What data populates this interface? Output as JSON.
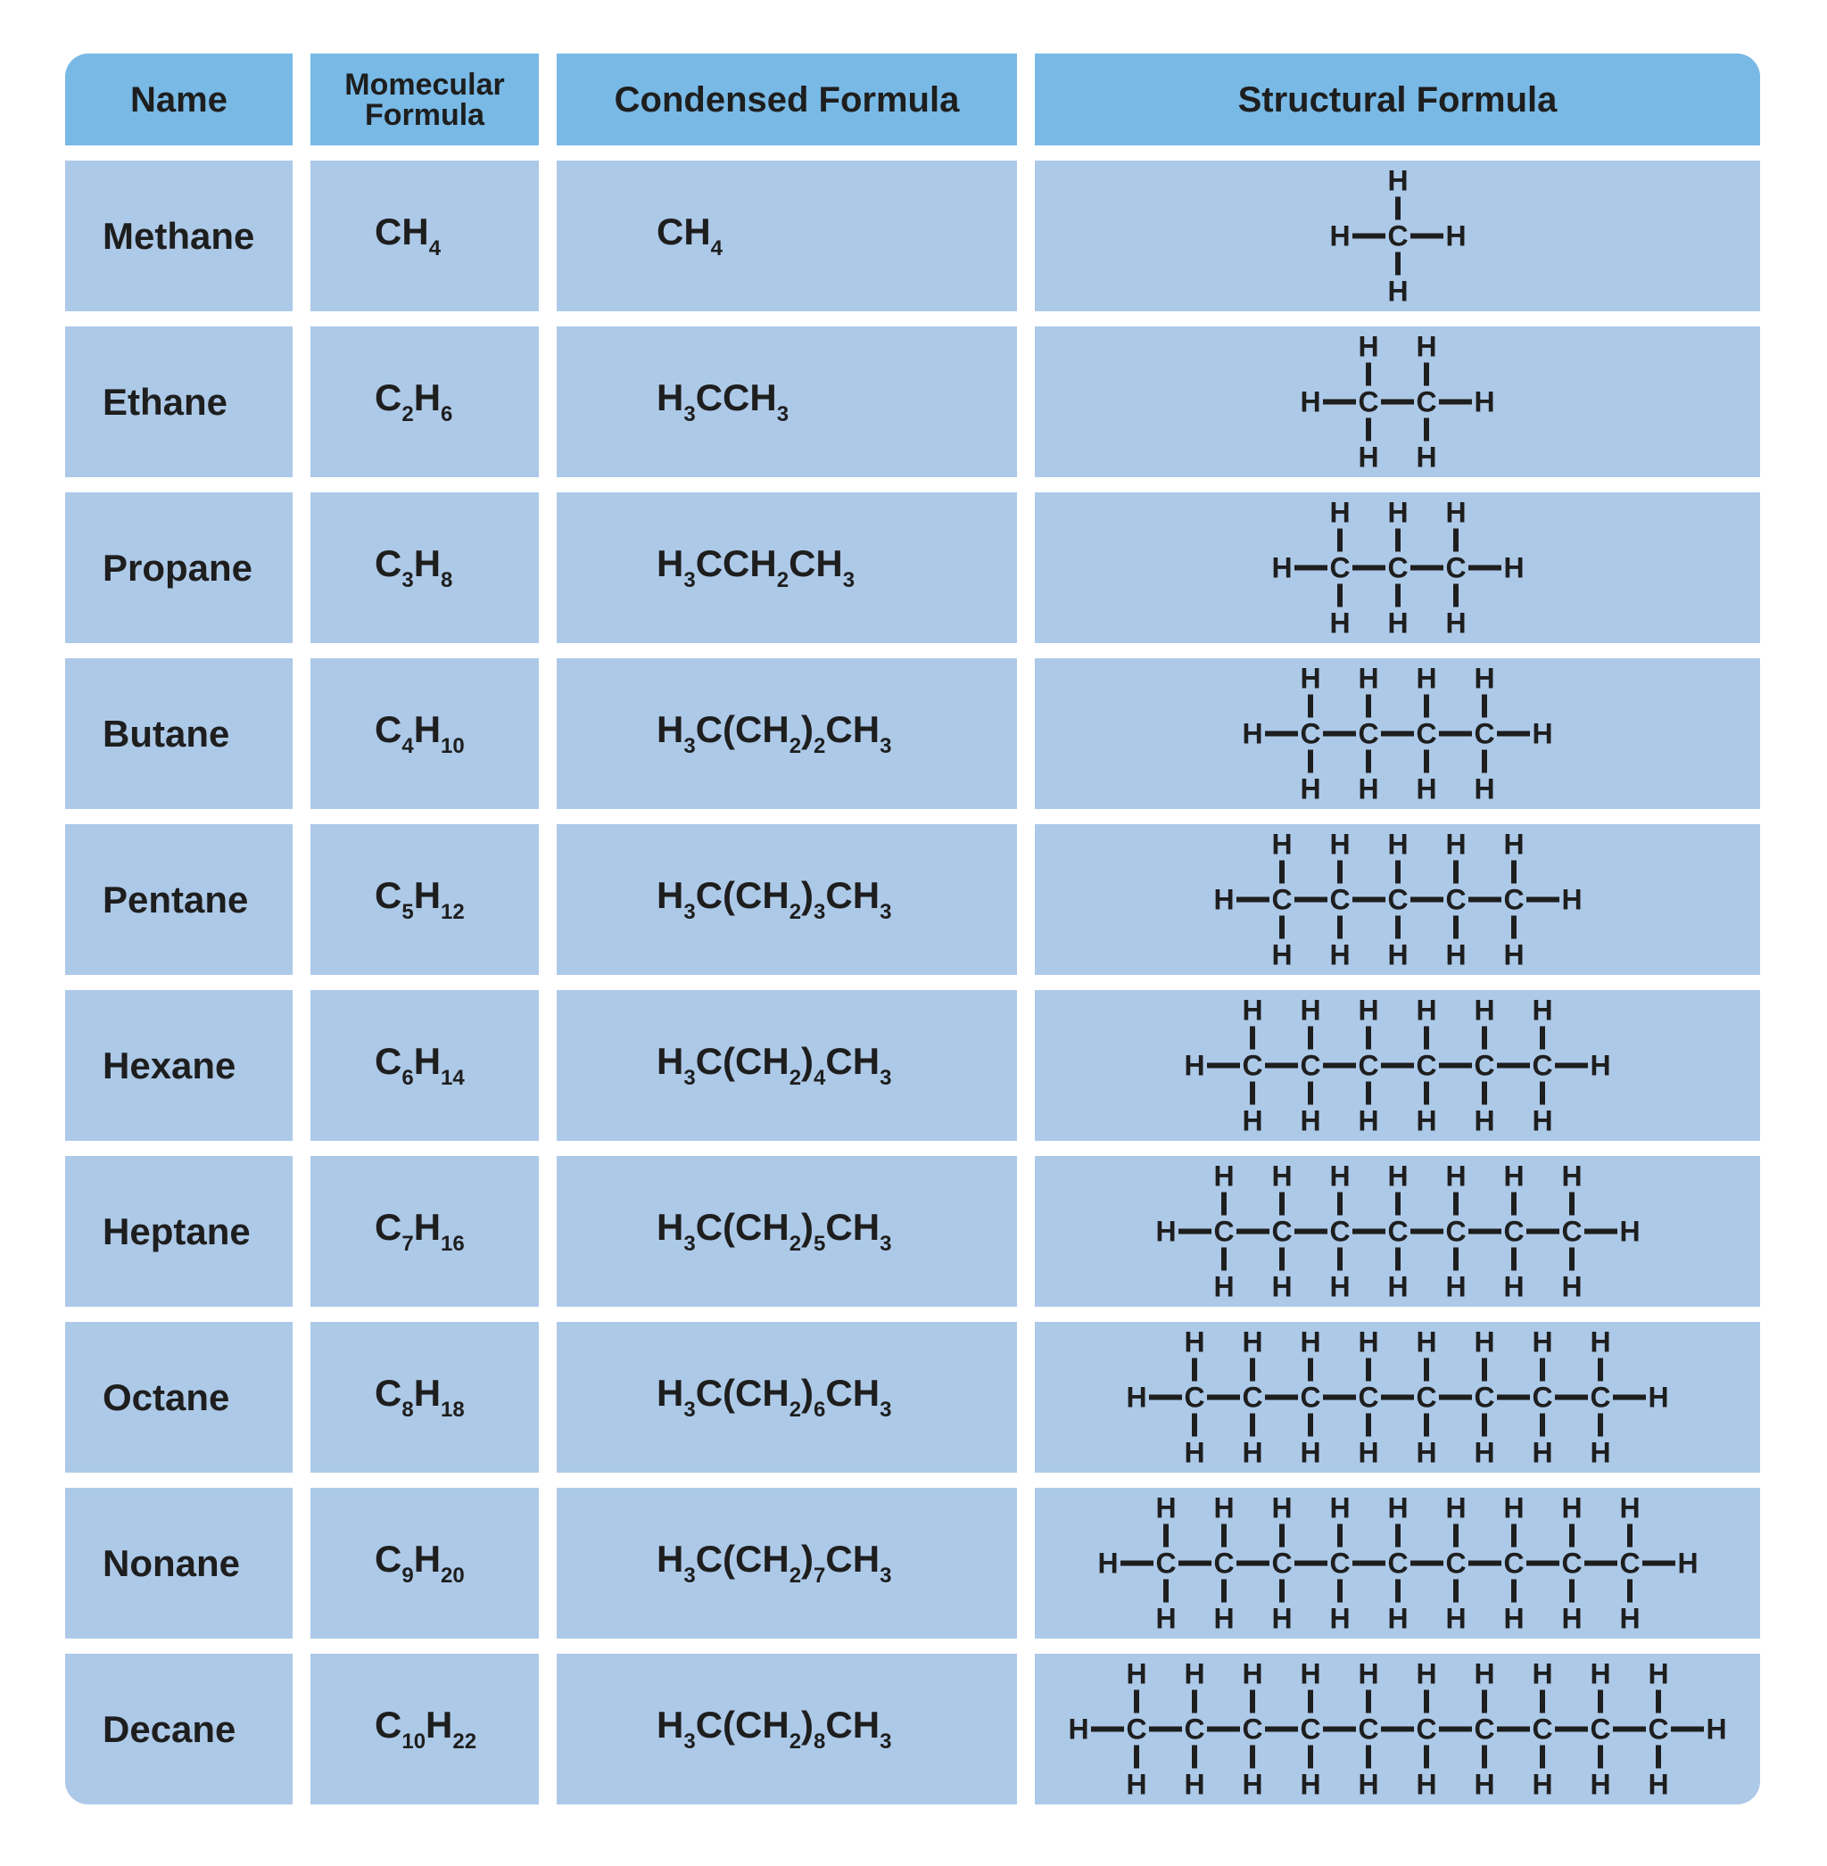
{
  "headers": {
    "name": "Name",
    "molecular": "Momecular Formula",
    "condensed": "Condensed Formula",
    "structural": "Structural Formula"
  },
  "colors": {
    "header": "#78b9e6",
    "cell": "#adc9e8",
    "text": "#1e1e1e"
  },
  "atoms": {
    "carbon": "C",
    "hydrogen": "H"
  },
  "rows": [
    {
      "name": "Methane",
      "carbons": 1,
      "molecular": [
        [
          "C",
          ""
        ],
        [
          "H",
          "4"
        ]
      ],
      "condensed": [
        [
          "CH",
          "4"
        ]
      ]
    },
    {
      "name": "Ethane",
      "carbons": 2,
      "molecular": [
        [
          "C",
          "2"
        ],
        [
          "H",
          "6"
        ]
      ],
      "condensed": [
        [
          "H",
          "3"
        ],
        [
          "CCH",
          "3"
        ]
      ]
    },
    {
      "name": "Propane",
      "carbons": 3,
      "molecular": [
        [
          "C",
          "3"
        ],
        [
          "H",
          "8"
        ]
      ],
      "condensed": [
        [
          "H",
          "3"
        ],
        [
          "CCH",
          "2"
        ],
        [
          "CH",
          "3"
        ]
      ]
    },
    {
      "name": "Butane",
      "carbons": 4,
      "molecular": [
        [
          "C",
          "4"
        ],
        [
          "H",
          "10"
        ]
      ],
      "condensed": [
        [
          "H",
          "3"
        ],
        [
          "C(CH",
          "2"
        ],
        [
          ")",
          "2"
        ],
        [
          "CH",
          "3"
        ]
      ]
    },
    {
      "name": "Pentane",
      "carbons": 5,
      "molecular": [
        [
          "C",
          "5"
        ],
        [
          "H",
          "12"
        ]
      ],
      "condensed": [
        [
          "H",
          "3"
        ],
        [
          "C(CH",
          "2"
        ],
        [
          ")",
          "3"
        ],
        [
          "CH",
          "3"
        ]
      ]
    },
    {
      "name": "Hexane",
      "carbons": 6,
      "molecular": [
        [
          "C",
          "6"
        ],
        [
          "H",
          "14"
        ]
      ],
      "condensed": [
        [
          "H",
          "3"
        ],
        [
          "C(CH",
          "2"
        ],
        [
          ")",
          "4"
        ],
        [
          "CH",
          "3"
        ]
      ]
    },
    {
      "name": "Heptane",
      "carbons": 7,
      "molecular": [
        [
          "C",
          "7"
        ],
        [
          "H",
          "16"
        ]
      ],
      "condensed": [
        [
          "H",
          "3"
        ],
        [
          "C(CH",
          "2"
        ],
        [
          ")",
          "5"
        ],
        [
          "CH",
          "3"
        ]
      ]
    },
    {
      "name": "Octane",
      "carbons": 8,
      "molecular": [
        [
          "C",
          "8"
        ],
        [
          "H",
          "18"
        ]
      ],
      "condensed": [
        [
          "H",
          "3"
        ],
        [
          "C(CH",
          "2"
        ],
        [
          ")",
          "6"
        ],
        [
          "CH",
          "3"
        ]
      ]
    },
    {
      "name": "Nonane",
      "carbons": 9,
      "molecular": [
        [
          "C",
          "9"
        ],
        [
          "H",
          "20"
        ]
      ],
      "condensed": [
        [
          "H",
          "3"
        ],
        [
          "C(CH",
          "2"
        ],
        [
          ")",
          "7"
        ],
        [
          "CH",
          "3"
        ]
      ]
    },
    {
      "name": "Decane",
      "carbons": 10,
      "molecular": [
        [
          "C",
          "10"
        ],
        [
          "H",
          "22"
        ]
      ],
      "condensed": [
        [
          "H",
          "3"
        ],
        [
          "C(CH",
          "2"
        ],
        [
          ")",
          "8"
        ],
        [
          "CH",
          "3"
        ]
      ]
    }
  ]
}
